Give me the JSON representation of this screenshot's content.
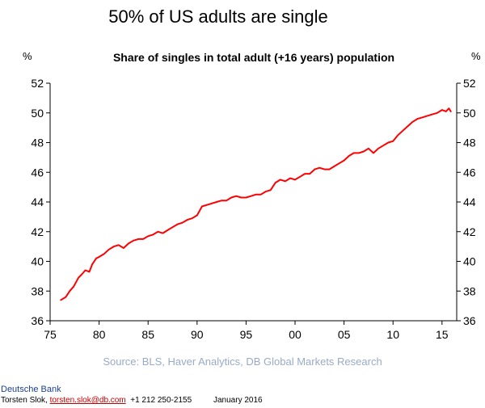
{
  "headline": "50% of US adults are single",
  "unit_left": "%",
  "unit_right": "%",
  "chart_data": {
    "type": "line",
    "title": "Share of singles in total adult (+16 years) population",
    "xlabel": "",
    "ylabel": "%",
    "xlim": [
      1975,
      2016.5
    ],
    "ylim": [
      36,
      52
    ],
    "x_ticks": [
      {
        "value": 1975,
        "label": "75"
      },
      {
        "value": 1980,
        "label": "80"
      },
      {
        "value": 1985,
        "label": "85"
      },
      {
        "value": 1990,
        "label": "90"
      },
      {
        "value": 1995,
        "label": "95"
      },
      {
        "value": 2000,
        "label": "00"
      },
      {
        "value": 2005,
        "label": "05"
      },
      {
        "value": 2010,
        "label": "10"
      },
      {
        "value": 2015,
        "label": "15"
      }
    ],
    "y_ticks": [
      {
        "value": 36,
        "label": "36"
      },
      {
        "value": 38,
        "label": "38"
      },
      {
        "value": 40,
        "label": "40"
      },
      {
        "value": 42,
        "label": "42"
      },
      {
        "value": 44,
        "label": "44"
      },
      {
        "value": 46,
        "label": "46"
      },
      {
        "value": 48,
        "label": "48"
      },
      {
        "value": 50,
        "label": "50"
      },
      {
        "value": 52,
        "label": "52"
      }
    ],
    "series": [
      {
        "name": "Share of singles",
        "color": "#ff0000",
        "x": [
          1976.1,
          1976.6,
          1977.0,
          1977.4,
          1977.9,
          1978.2,
          1978.6,
          1979.0,
          1979.3,
          1979.7,
          1980.0,
          1980.5,
          1981.0,
          1981.5,
          1982.0,
          1982.5,
          1983.0,
          1983.5,
          1984.0,
          1984.5,
          1985.0,
          1985.5,
          1986.0,
          1986.5,
          1987.0,
          1987.5,
          1988.0,
          1988.5,
          1989.0,
          1989.5,
          1990.0,
          1990.5,
          1991.0,
          1991.5,
          1992.0,
          1992.5,
          1993.0,
          1993.5,
          1994.0,
          1994.5,
          1995.0,
          1995.5,
          1996.0,
          1996.5,
          1997.0,
          1997.5,
          1998.0,
          1998.5,
          1999.0,
          1999.5,
          2000.0,
          2000.5,
          2001.0,
          2001.5,
          2002.0,
          2002.5,
          2003.0,
          2003.5,
          2004.0,
          2004.5,
          2005.0,
          2005.5,
          2006.0,
          2006.5,
          2007.0,
          2007.5,
          2008.0,
          2008.5,
          2009.0,
          2009.5,
          2010.0,
          2010.5,
          2011.0,
          2011.5,
          2012.0,
          2012.5,
          2013.0,
          2013.5,
          2014.0,
          2014.5,
          2015.0,
          2015.4,
          2015.7,
          2015.9
        ],
        "values": [
          37.4,
          37.6,
          38.0,
          38.3,
          38.9,
          39.1,
          39.4,
          39.3,
          39.8,
          40.2,
          40.3,
          40.5,
          40.8,
          41.0,
          41.1,
          40.9,
          41.2,
          41.4,
          41.5,
          41.5,
          41.7,
          41.8,
          42.0,
          41.9,
          42.1,
          42.3,
          42.5,
          42.6,
          42.8,
          42.9,
          43.1,
          43.7,
          43.8,
          43.9,
          44.0,
          44.1,
          44.1,
          44.3,
          44.4,
          44.3,
          44.3,
          44.4,
          44.5,
          44.5,
          44.7,
          44.8,
          45.3,
          45.5,
          45.4,
          45.6,
          45.5,
          45.7,
          45.9,
          45.9,
          46.2,
          46.3,
          46.2,
          46.2,
          46.4,
          46.6,
          46.8,
          47.1,
          47.3,
          47.3,
          47.4,
          47.6,
          47.3,
          47.6,
          47.8,
          48.0,
          48.1,
          48.5,
          48.8,
          49.1,
          49.4,
          49.6,
          49.7,
          49.8,
          49.9,
          50.0,
          50.2,
          50.1,
          50.3,
          50.1
        ]
      }
    ]
  },
  "source": "Source: BLS, Haver Analytics, DB Global Markets Research",
  "brand": "Deutsche Bank",
  "footer": {
    "author": "Torsten Slok, ",
    "email": "torsten.slok@db.com",
    "phone": "  +1 212 250-2155",
    "date": "January 2016"
  }
}
